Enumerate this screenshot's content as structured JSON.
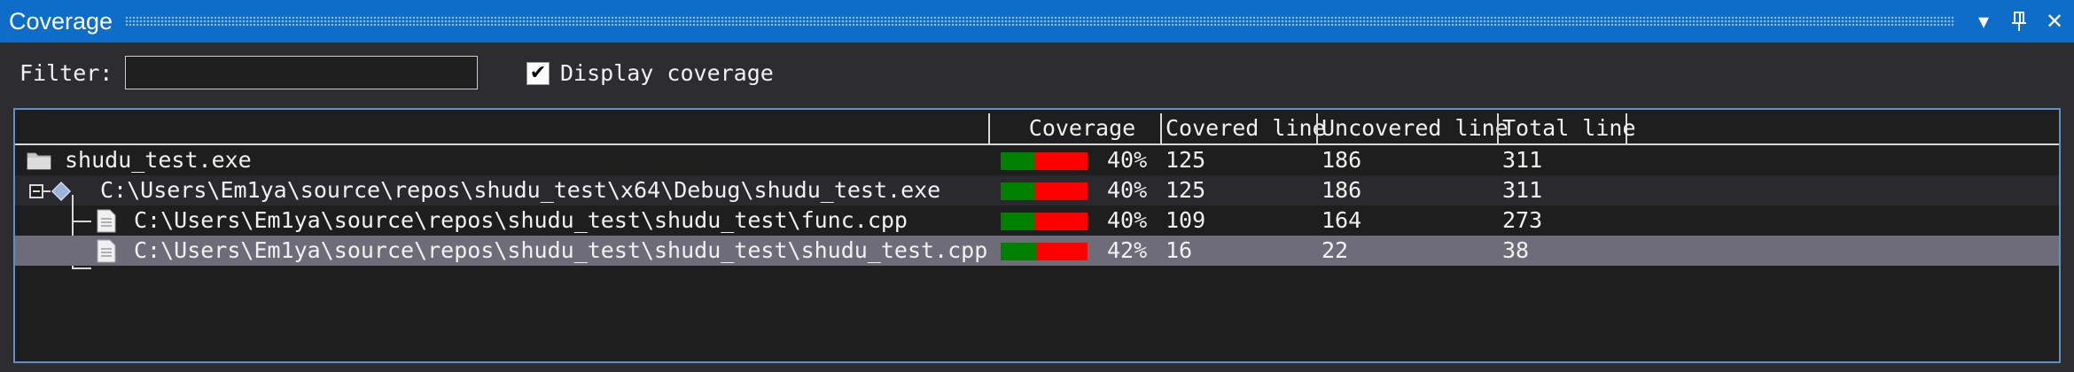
{
  "window": {
    "title": "Coverage"
  },
  "title_buttons": {
    "dropdown": "▾",
    "pin": "⊥",
    "close": "✕"
  },
  "filter": {
    "label": "Filter:",
    "value": ""
  },
  "display_coverage": {
    "label": "Display coverage",
    "checked": true,
    "mark": "✔"
  },
  "columns": {
    "coverage": "Coverage",
    "covered": "Covered line",
    "uncovered": "Uncovered line",
    "total": "Total line"
  },
  "colors": {
    "covered": "#008000",
    "uncovered": "#ff0000",
    "selection": "#6f6c7a",
    "accent": "#0e6dc9"
  },
  "rows": [
    {
      "icon": "folder-icon",
      "name": "shudu_test.exe",
      "coverage": 0.4,
      "percent": "40%",
      "covered": "125",
      "uncovered": "186",
      "total": "311"
    },
    {
      "icon": "module-icon",
      "name": "C:\\Users\\Em1ya\\source\\repos\\shudu_test\\x64\\Debug\\shudu_test.exe",
      "coverage": 0.4,
      "percent": "40%",
      "covered": "125",
      "uncovered": "186",
      "total": "311",
      "expanded": true
    },
    {
      "icon": "file-icon",
      "name": "C:\\Users\\Em1ya\\source\\repos\\shudu_test\\shudu_test\\func.cpp",
      "coverage": 0.4,
      "percent": "40%",
      "covered": "109",
      "uncovered": "164",
      "total": "273"
    },
    {
      "icon": "file-icon",
      "name": "C:\\Users\\Em1ya\\source\\repos\\shudu_test\\shudu_test\\shudu_test.cpp",
      "coverage": 0.42,
      "percent": "42%",
      "covered": "16",
      "uncovered": "22",
      "total": "38",
      "selected": true
    }
  ]
}
